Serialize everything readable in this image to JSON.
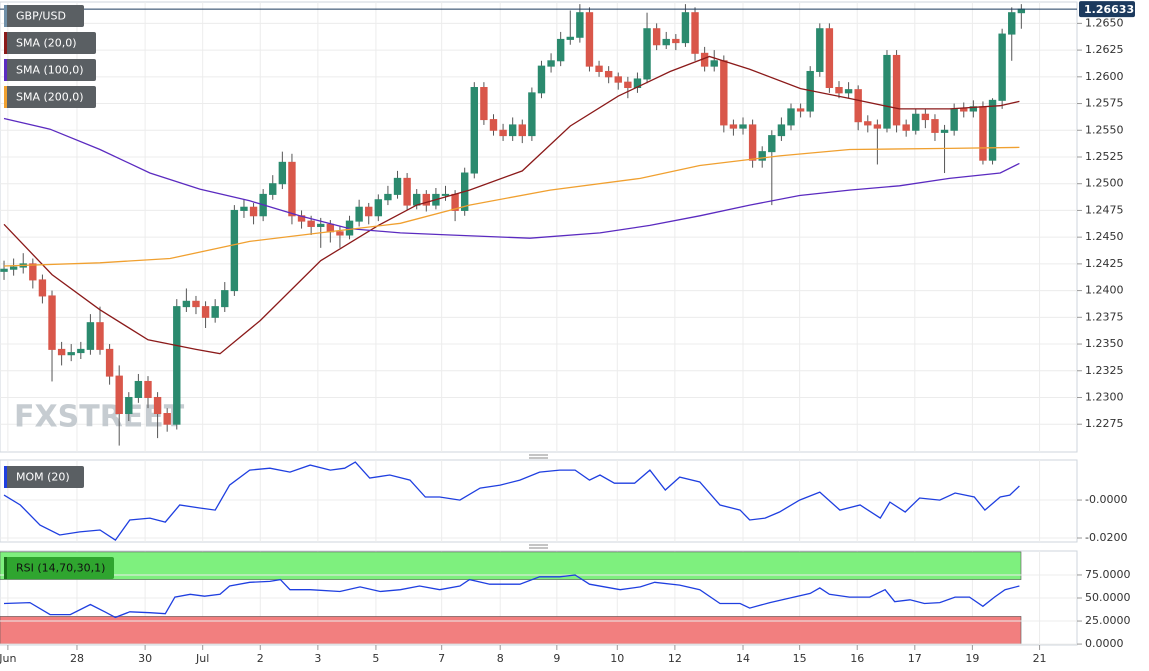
{
  "chart_data": {
    "type": "candlestick",
    "title": "GBP/USD",
    "watermark": "FXSTREET",
    "grid": true,
    "up_color": "#2b8a6e",
    "down_color": "#d9574a",
    "last_price": {
      "value": 1.26633,
      "label": "1.26633"
    },
    "xlim": [
      -0.42,
      111.8
    ],
    "xticks": [
      {
        "value": 0.4,
        "label": "Jun"
      },
      {
        "value": 7.6,
        "label": "28"
      },
      {
        "value": 14.7,
        "label": "30"
      },
      {
        "value": 20.7,
        "label": "Jul"
      },
      {
        "value": 26.7,
        "label": "2"
      },
      {
        "value": 32.7,
        "label": "3"
      },
      {
        "value": 38.75,
        "label": "5"
      },
      {
        "value": 45.6,
        "label": "7"
      },
      {
        "value": 51.7,
        "label": "8"
      },
      {
        "value": 57.6,
        "label": "9"
      },
      {
        "value": 63.9,
        "label": "10"
      },
      {
        "value": 69.9,
        "label": "12"
      },
      {
        "value": 77,
        "label": "14"
      },
      {
        "value": 82.9,
        "label": "15"
      },
      {
        "value": 88.9,
        "label": "16"
      },
      {
        "value": 94.9,
        "label": "17"
      },
      {
        "value": 100.9,
        "label": "19"
      },
      {
        "value": 107.9,
        "label": "21"
      }
    ],
    "ylim": [
      1.2249,
      1.267
    ],
    "yticks": [
      {
        "value": 1.265,
        "label": "1.2650"
      },
      {
        "value": 1.2625,
        "label": "1.2625"
      },
      {
        "value": 1.26,
        "label": "1.2600"
      },
      {
        "value": 1.2575,
        "label": "1.2575"
      },
      {
        "value": 1.255,
        "label": "1.2550"
      },
      {
        "value": 1.2525,
        "label": "1.2525"
      },
      {
        "value": 1.25,
        "label": "1.2500"
      },
      {
        "value": 1.2475,
        "label": "1.2475"
      },
      {
        "value": 1.245,
        "label": "1.2450"
      },
      {
        "value": 1.2425,
        "label": "1.2425"
      },
      {
        "value": 1.24,
        "label": "1.2400"
      },
      {
        "value": 1.2375,
        "label": "1.2375"
      },
      {
        "value": 1.235,
        "label": "1.2350"
      },
      {
        "value": 1.2325,
        "label": "1.2325"
      },
      {
        "value": 1.23,
        "label": "1.2300"
      },
      {
        "value": 1.2275,
        "label": "1.2275"
      }
    ],
    "ohlc": [
      [
        1.2418,
        1.2428,
        1.241,
        1.242
      ],
      [
        1.242,
        1.243,
        1.2414,
        1.2422
      ],
      [
        1.2422,
        1.2435,
        1.2416,
        1.2425
      ],
      [
        1.2425,
        1.243,
        1.2402,
        1.241
      ],
      [
        1.241,
        1.2415,
        1.2388,
        1.2395
      ],
      [
        1.2395,
        1.24,
        1.2315,
        1.2345
      ],
      [
        1.2345,
        1.2352,
        1.233,
        1.234
      ],
      [
        1.234,
        1.235,
        1.2334,
        1.2342
      ],
      [
        1.2342,
        1.2352,
        1.2336,
        1.2345
      ],
      [
        1.2345,
        1.2378,
        1.234,
        1.237
      ],
      [
        1.237,
        1.2385,
        1.234,
        1.2345
      ],
      [
        1.2345,
        1.235,
        1.2312,
        1.232
      ],
      [
        1.232,
        1.233,
        1.2255,
        1.2285
      ],
      [
        1.2285,
        1.2305,
        1.2278,
        1.23
      ],
      [
        1.23,
        1.2322,
        1.2295,
        1.2315
      ],
      [
        1.2315,
        1.232,
        1.229,
        1.23
      ],
      [
        1.23,
        1.2305,
        1.2262,
        1.2285
      ],
      [
        1.2285,
        1.229,
        1.2268,
        1.2275
      ],
      [
        1.2275,
        1.2392,
        1.227,
        1.2385
      ],
      [
        1.2385,
        1.2402,
        1.238,
        1.239
      ],
      [
        1.239,
        1.2395,
        1.2378,
        1.2385
      ],
      [
        1.2385,
        1.239,
        1.2365,
        1.2375
      ],
      [
        1.2375,
        1.2392,
        1.237,
        1.2385
      ],
      [
        1.2385,
        1.2408,
        1.238,
        1.24
      ],
      [
        1.24,
        1.248,
        1.2395,
        1.2475
      ],
      [
        1.2475,
        1.2485,
        1.2468,
        1.2478
      ],
      [
        1.2478,
        1.2482,
        1.2462,
        1.247
      ],
      [
        1.247,
        1.2495,
        1.2465,
        1.249
      ],
      [
        1.249,
        1.2508,
        1.2485,
        1.25
      ],
      [
        1.25,
        1.253,
        1.2495,
        1.252
      ],
      [
        1.252,
        1.2528,
        1.2462,
        1.247
      ],
      [
        1.247,
        1.2475,
        1.2458,
        1.2465
      ],
      [
        1.2465,
        1.247,
        1.2452,
        1.246
      ],
      [
        1.246,
        1.2468,
        1.244,
        1.2462
      ],
      [
        1.2462,
        1.2466,
        1.2445,
        1.2455
      ],
      [
        1.2455,
        1.246,
        1.244,
        1.2452
      ],
      [
        1.2452,
        1.247,
        1.2448,
        1.2465
      ],
      [
        1.2465,
        1.2485,
        1.246,
        1.2478
      ],
      [
        1.2478,
        1.2482,
        1.2462,
        1.247
      ],
      [
        1.247,
        1.249,
        1.2465,
        1.2485
      ],
      [
        1.2485,
        1.2498,
        1.248,
        1.249
      ],
      [
        1.249,
        1.2512,
        1.2486,
        1.2505
      ],
      [
        1.2505,
        1.251,
        1.2475,
        1.248
      ],
      [
        1.248,
        1.2495,
        1.2476,
        1.249
      ],
      [
        1.249,
        1.2494,
        1.2474,
        1.248
      ],
      [
        1.248,
        1.2496,
        1.2476,
        1.249
      ],
      [
        1.249,
        1.2498,
        1.2484,
        1.249
      ],
      [
        1.249,
        1.2494,
        1.2465,
        1.2475
      ],
      [
        1.2475,
        1.2515,
        1.247,
        1.251
      ],
      [
        1.251,
        1.2595,
        1.2505,
        1.259
      ],
      [
        1.259,
        1.2595,
        1.2555,
        1.256
      ],
      [
        1.256,
        1.2565,
        1.2545,
        1.255
      ],
      [
        1.255,
        1.2556,
        1.254,
        1.2545
      ],
      [
        1.2545,
        1.2562,
        1.254,
        1.2555
      ],
      [
        1.2555,
        1.256,
        1.2538,
        1.2545
      ],
      [
        1.2545,
        1.259,
        1.254,
        1.2585
      ],
      [
        1.2585,
        1.2615,
        1.258,
        1.261
      ],
      [
        1.261,
        1.2622,
        1.2604,
        1.2615
      ],
      [
        1.2615,
        1.2642,
        1.261,
        1.2635
      ],
      [
        1.2635,
        1.2662,
        1.263,
        1.2637
      ],
      [
        1.2637,
        1.2668,
        1.2632,
        1.266
      ],
      [
        1.266,
        1.2665,
        1.2605,
        1.261
      ],
      [
        1.261,
        1.2615,
        1.26,
        1.2605
      ],
      [
        1.2605,
        1.261,
        1.2594,
        1.26
      ],
      [
        1.26,
        1.2604,
        1.2588,
        1.2595
      ],
      [
        1.2595,
        1.26,
        1.258,
        1.259
      ],
      [
        1.259,
        1.2604,
        1.2585,
        1.2598
      ],
      [
        1.2598,
        1.266,
        1.2594,
        1.2645
      ],
      [
        1.2645,
        1.265,
        1.2625,
        1.263
      ],
      [
        1.263,
        1.2642,
        1.2626,
        1.2635
      ],
      [
        1.2635,
        1.264,
        1.2625,
        1.2632
      ],
      [
        1.2632,
        1.2668,
        1.2628,
        1.266
      ],
      [
        1.266,
        1.2665,
        1.2615,
        1.2622
      ],
      [
        1.2622,
        1.2628,
        1.2605,
        1.261
      ],
      [
        1.261,
        1.2625,
        1.2605,
        1.2615
      ],
      [
        1.2615,
        1.262,
        1.2548,
        1.2555
      ],
      [
        1.2555,
        1.256,
        1.2545,
        1.2552
      ],
      [
        1.2552,
        1.2562,
        1.2546,
        1.2555
      ],
      [
        1.2555,
        1.256,
        1.2515,
        1.2522
      ],
      [
        1.2522,
        1.2535,
        1.2515,
        1.253
      ],
      [
        1.253,
        1.255,
        1.248,
        1.2545
      ],
      [
        1.2545,
        1.2562,
        1.254,
        1.2555
      ],
      [
        1.2555,
        1.2575,
        1.255,
        1.257
      ],
      [
        1.257,
        1.2575,
        1.2562,
        1.2568
      ],
      [
        1.2568,
        1.261,
        1.2562,
        1.2605
      ],
      [
        1.2605,
        1.265,
        1.26,
        1.2645
      ],
      [
        1.2645,
        1.265,
        1.2585,
        1.259
      ],
      [
        1.259,
        1.2596,
        1.258,
        1.2585
      ],
      [
        1.2585,
        1.2595,
        1.258,
        1.2588
      ],
      [
        1.2588,
        1.2592,
        1.255,
        1.2558
      ],
      [
        1.2558,
        1.2564,
        1.2548,
        1.2555
      ],
      [
        1.2555,
        1.256,
        1.2518,
        1.2552
      ],
      [
        1.2552,
        1.2625,
        1.2548,
        1.262
      ],
      [
        1.262,
        1.2625,
        1.2548,
        1.2555
      ],
      [
        1.2555,
        1.256,
        1.2544,
        1.255
      ],
      [
        1.255,
        1.257,
        1.2546,
        1.2565
      ],
      [
        1.2565,
        1.257,
        1.2552,
        1.256
      ],
      [
        1.256,
        1.2565,
        1.254,
        1.2548
      ],
      [
        1.2548,
        1.2555,
        1.251,
        1.255
      ],
      [
        1.255,
        1.2575,
        1.2545,
        1.257
      ],
      [
        1.257,
        1.2576,
        1.2562,
        1.2568
      ],
      [
        1.2568,
        1.2578,
        1.2562,
        1.2572
      ],
      [
        1.2572,
        1.2577,
        1.2518,
        1.2522
      ],
      [
        1.2522,
        1.258,
        1.2518,
        1.2578
      ],
      [
        1.2578,
        1.2645,
        1.257,
        1.264
      ],
      [
        1.264,
        1.2665,
        1.2615,
        1.266
      ],
      [
        1.266,
        1.2668,
        1.2645,
        1.26633
      ]
    ],
    "overlays": [
      {
        "name": "SMA (20,0)",
        "color": "#8b1a1a",
        "x": [
          0,
          5,
          10,
          15,
          20,
          22.5,
          26.7,
          33,
          39,
          43,
          48.5,
          54,
          59,
          64,
          69.4,
          73.5,
          77.7,
          83,
          88,
          93.3,
          98.5,
          103.8,
          105.8
        ],
        "values": [
          1.2462,
          1.2415,
          1.2382,
          1.2354,
          1.2345,
          1.2341,
          1.2372,
          1.2428,
          1.2461,
          1.248,
          1.2494,
          1.2512,
          1.2554,
          1.2582,
          1.2605,
          1.2619,
          1.2607,
          1.2589,
          1.258,
          1.257,
          1.257,
          1.2573,
          1.2577
        ]
      },
      {
        "name": "SMA (100,0)",
        "color": "#5b2bc0",
        "x": [
          0,
          4.8,
          10,
          15.2,
          20.4,
          25.6,
          30.8,
          36,
          41.3,
          46.5,
          54.8,
          62.1,
          67.3,
          72.5,
          77.7,
          82.9,
          88.1,
          93.3,
          98.5,
          103.8,
          105.8
        ],
        "values": [
          1.2561,
          1.2551,
          1.2532,
          1.251,
          1.2495,
          1.2484,
          1.247,
          1.2458,
          1.2454,
          1.2452,
          1.2449,
          1.2454,
          1.2461,
          1.247,
          1.248,
          1.2489,
          1.2494,
          1.2498,
          1.2505,
          1.251,
          1.2519
        ]
      },
      {
        "name": "SMA (200,0)",
        "color": "#f0a030",
        "x": [
          0,
          10,
          17.3,
          25.6,
          32.9,
          41.3,
          48.5,
          56.9,
          66.3,
          72.5,
          80.8,
          88.1,
          98.5,
          105.8
        ],
        "values": [
          1.2423,
          1.2426,
          1.243,
          1.2446,
          1.2454,
          1.2463,
          1.248,
          1.2494,
          1.2505,
          1.2517,
          1.2526,
          1.2532,
          1.2533,
          1.2534
        ]
      }
    ],
    "indicators": [
      {
        "type": "line",
        "name": "MOM (20)",
        "color": "#1f3fe0",
        "ylim": [
          -0.0221,
          0.0211
        ],
        "yticks": [
          {
            "value": 0,
            "label": "-0.0000"
          },
          {
            "value": -0.02,
            "label": "-0.0200"
          }
        ],
        "x": [
          0,
          1.7,
          3.75,
          5.8,
          7.9,
          10,
          11.6,
          13.1,
          15.2,
          16.8,
          18.3,
          20.4,
          22,
          23.5,
          25.6,
          27.7,
          29.8,
          31.9,
          34,
          35.5,
          36.6,
          38.1,
          40.2,
          42.3,
          43.9,
          45.4,
          47.5,
          49.6,
          51.7,
          53.75,
          55.8,
          57.9,
          59.5,
          61,
          62.1,
          63.6,
          65.7,
          67.3,
          68.9,
          70.4,
          72.5,
          74.6,
          76.7,
          77.7,
          79.3,
          80.8,
          82.9,
          85,
          87.1,
          89.2,
          91.3,
          92.3,
          93.9,
          95.4,
          97.5,
          99.1,
          101.1,
          102.2,
          103.8,
          104.8,
          105.8
        ],
        "values": [
          0.0026,
          -0.0026,
          -0.0132,
          -0.0184,
          -0.0168,
          -0.0158,
          -0.0211,
          -0.0105,
          -0.0095,
          -0.0116,
          -0.0026,
          -0.0042,
          -0.0053,
          0.0079,
          0.0158,
          0.0168,
          0.0147,
          0.0184,
          0.0158,
          0.0168,
          0.02,
          0.0116,
          0.0132,
          0.0105,
          0.0016,
          0.0016,
          0,
          0.0063,
          0.0079,
          0.0105,
          0.0147,
          0.0158,
          0.0158,
          0.0105,
          0.0132,
          0.0089,
          0.0089,
          0.0158,
          0.0053,
          0.0121,
          0.0095,
          -0.0026,
          -0.0053,
          -0.0105,
          -0.0095,
          -0.0063,
          0,
          0.0042,
          -0.0053,
          -0.0026,
          -0.0095,
          -0.0011,
          -0.0063,
          0.0011,
          0,
          0.0037,
          0.0016,
          -0.0053,
          0.0016,
          0.0026,
          0.0074
        ]
      },
      {
        "type": "line",
        "name": "RSI (14,70,30,1)",
        "color": "#1f3fe0",
        "ylim": [
          -1,
          101
        ],
        "yticks": [
          {
            "value": 75,
            "label": "75.0000"
          },
          {
            "value": 50,
            "label": "50.0000"
          },
          {
            "value": 25,
            "label": "25.0000"
          },
          {
            "value": 0,
            "label": "0.0000"
          }
        ],
        "bands": [
          {
            "range": [
              70,
              100
            ],
            "color": "#7ef07e"
          },
          {
            "range": [
              0,
              30
            ],
            "color": "#f27f7f"
          }
        ],
        "x": [
          0,
          2.7,
          4.8,
          6.9,
          9,
          10.5,
          11.6,
          13.1,
          15.2,
          16.8,
          17.8,
          19.4,
          20.9,
          22.5,
          23.5,
          25.6,
          27.7,
          28.8,
          29.8,
          31.9,
          35,
          37.1,
          39.2,
          41.3,
          43.3,
          45.4,
          47.5,
          48.5,
          50.6,
          53.75,
          55.8,
          57.9,
          59.5,
          61,
          64.2,
          66.3,
          67.8,
          70.4,
          72.5,
          74.6,
          76.7,
          77.7,
          79.8,
          81.9,
          84,
          85,
          86,
          88.1,
          90.2,
          91.8,
          92.8,
          94.4,
          95.9,
          97.5,
          99.1,
          100.6,
          102,
          103.2,
          104.3,
          105.8
        ],
        "values": [
          44,
          45,
          32,
          32,
          43,
          35,
          29,
          35,
          34,
          33,
          51,
          54,
          52,
          54,
          63,
          67,
          68,
          70,
          59,
          59,
          57,
          62,
          57,
          59,
          63,
          59,
          63,
          70,
          65,
          65,
          73,
          73,
          75,
          65,
          59,
          62,
          67,
          64,
          59,
          44,
          44,
          39,
          45,
          50,
          55,
          61,
          54,
          51,
          51,
          59,
          46,
          48,
          44,
          45,
          51,
          51,
          41,
          51,
          59,
          63
        ]
      }
    ]
  }
}
